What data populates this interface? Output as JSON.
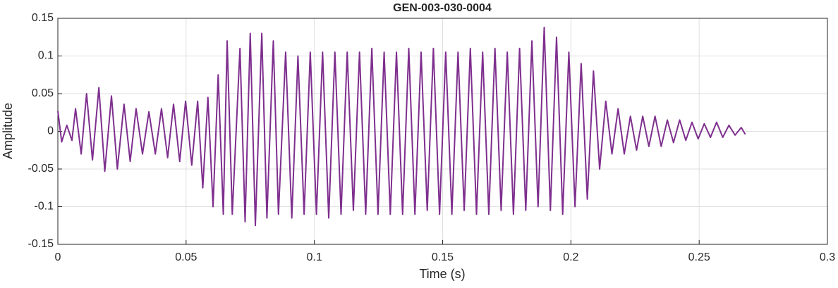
{
  "chart_data": {
    "type": "line",
    "title": "GEN-003-030-0004",
    "xlabel": "Time (s)",
    "ylabel": "Amplitude",
    "color": "#7e2f8e",
    "grid": true,
    "xlim": [
      0,
      0.3
    ],
    "xticks": [
      0,
      0.05,
      0.1,
      0.15,
      0.2,
      0.25,
      0.3
    ],
    "ylim": [
      -0.15,
      0.15
    ],
    "yticks": [
      -0.15,
      -0.1,
      -0.05,
      0,
      0.05,
      0.1,
      0.15
    ],
    "x": [
      0,
      0.0015,
      0.0035,
      0.0055,
      0.0069,
      0.0091,
      0.0112,
      0.0135,
      0.016,
      0.0183,
      0.0209,
      0.0232,
      0.0258,
      0.0282,
      0.0305,
      0.033,
      0.0355,
      0.038,
      0.0404,
      0.0428,
      0.0451,
      0.0475,
      0.0498,
      0.0522,
      0.0545,
      0.0565,
      0.0585,
      0.0605,
      0.0625,
      0.0645,
      0.066,
      0.068,
      0.071,
      0.073,
      0.075,
      0.077,
      0.0795,
      0.0815,
      0.084,
      0.086,
      0.0888,
      0.0912,
      0.0936,
      0.096,
      0.0984,
      0.1008,
      0.1032,
      0.1056,
      0.108,
      0.1104,
      0.1128,
      0.1152,
      0.1176,
      0.12,
      0.1224,
      0.1248,
      0.1272,
      0.1296,
      0.132,
      0.1344,
      0.1368,
      0.1392,
      0.1416,
      0.144,
      0.1464,
      0.1488,
      0.1512,
      0.1536,
      0.156,
      0.1584,
      0.1608,
      0.1632,
      0.1656,
      0.168,
      0.1704,
      0.1728,
      0.1752,
      0.1776,
      0.18,
      0.1824,
      0.1848,
      0.1872,
      0.1896,
      0.192,
      0.1944,
      0.1968,
      0.1992,
      0.2016,
      0.204,
      0.2064,
      0.2088,
      0.2112,
      0.2136,
      0.216,
      0.2184,
      0.2208,
      0.2232,
      0.2256,
      0.228,
      0.2304,
      0.2328,
      0.2352,
      0.2376,
      0.24,
      0.2424,
      0.2448,
      0.2472,
      0.2496,
      0.252,
      0.2544,
      0.2568,
      0.2592,
      0.2616,
      0.264,
      0.2664,
      0.268
    ],
    "values": [
      0.027,
      -0.014,
      0.008,
      -0.012,
      0.03,
      -0.03,
      0.05,
      -0.038,
      0.058,
      -0.053,
      0.047,
      -0.05,
      0.036,
      -0.04,
      0.03,
      -0.03,
      0.026,
      -0.03,
      0.03,
      -0.035,
      0.036,
      -0.04,
      0.04,
      -0.045,
      0.04,
      -0.075,
      0.045,
      -0.1,
      0.075,
      -0.11,
      0.12,
      -0.11,
      0.11,
      -0.12,
      0.13,
      -0.125,
      0.13,
      -0.115,
      0.12,
      -0.11,
      0.105,
      -0.115,
      0.1,
      -0.11,
      0.105,
      -0.11,
      0.105,
      -0.115,
      0.105,
      -0.11,
      0.105,
      -0.105,
      0.105,
      -0.11,
      0.11,
      -0.11,
      0.105,
      -0.11,
      0.105,
      -0.11,
      0.11,
      -0.11,
      0.105,
      -0.105,
      0.11,
      -0.11,
      0.105,
      -0.11,
      0.105,
      -0.105,
      0.11,
      -0.11,
      0.105,
      -0.11,
      0.11,
      -0.105,
      0.105,
      -0.11,
      0.11,
      -0.105,
      0.12,
      -0.1,
      0.138,
      -0.105,
      0.125,
      -0.11,
      0.105,
      -0.1,
      0.09,
      -0.09,
      0.08,
      -0.05,
      0.04,
      -0.03,
      0.03,
      -0.03,
      0.02,
      -0.025,
      0.02,
      -0.02,
      0.02,
      -0.02,
      0.015,
      -0.015,
      0.015,
      -0.012,
      0.012,
      -0.01,
      0.01,
      -0.008,
      0.012,
      -0.008,
      0.008,
      -0.005,
      0.005,
      -0.004
    ]
  }
}
